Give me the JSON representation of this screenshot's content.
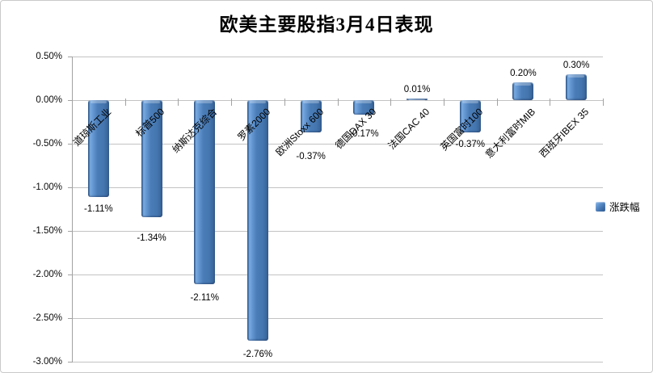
{
  "title": "欧美主要股指3月4日表现",
  "legend": {
    "label": "涨跌幅"
  },
  "colors": {
    "bar_main": "#4a7db8",
    "bar_dark": "#2f5c8e",
    "bar_highlight": "#7aabdf",
    "gridline": "#c3c3c3",
    "axis": "#a2a2a2",
    "border": "#c9c9c9",
    "text": "#000000"
  },
  "chart_data": {
    "type": "bar",
    "title": "欧美主要股指3月4日表现",
    "series_name": "涨跌幅",
    "categories": [
      "道琼斯工业",
      "标普500",
      "纳斯达克综合",
      "罗素2000",
      "欧洲Stoxx 600",
      "德国DAX 30",
      "法国CAC 40",
      "英国富时100",
      "意大利富时MIB",
      "西班牙IBEX 35"
    ],
    "values": [
      -1.11,
      -1.34,
      -2.11,
      -2.76,
      -0.37,
      -0.17,
      0.01,
      -0.37,
      0.2,
      0.3
    ],
    "data_labels": [
      "-1.11%",
      "-1.34%",
      "-2.11%",
      "-2.76%",
      "-0.37%",
      "-0.17%",
      "0.01%",
      "-0.37%",
      "0.20%",
      "0.30%"
    ],
    "xlabel": "",
    "ylabel": "",
    "ylim": [
      -3.0,
      0.5
    ],
    "ytick_values": [
      0.5,
      0.0,
      -0.5,
      -1.0,
      -1.5,
      -2.0,
      -2.5,
      -3.0
    ],
    "ytick_labels": [
      "0.50%",
      "0.00%",
      "-0.50%",
      "-1.00%",
      "-1.50%",
      "-2.00%",
      "-2.50%",
      "-3.00%"
    ],
    "grid": true,
    "legend_position": "right",
    "legend_entries": [
      "涨跌幅"
    ]
  }
}
